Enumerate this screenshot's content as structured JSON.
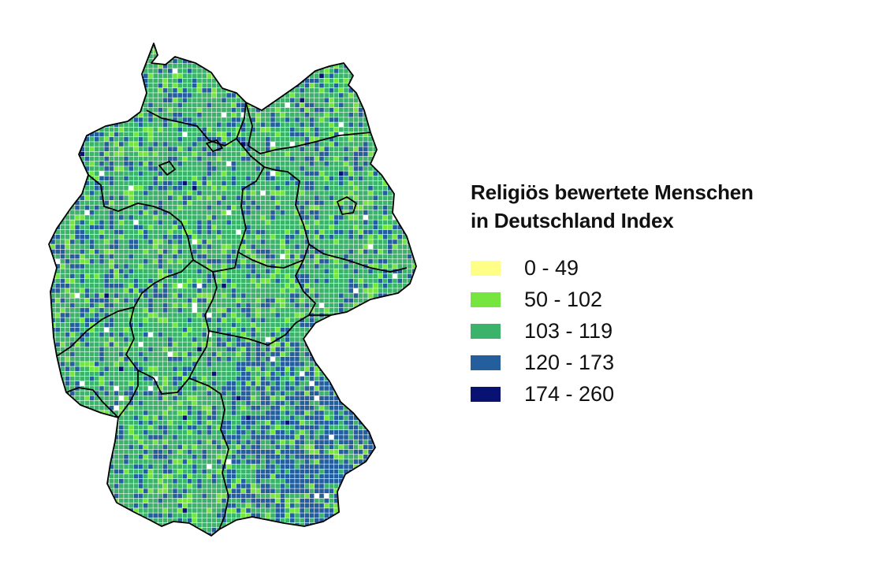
{
  "legend": {
    "title_line1": "Religiös bewertete Menschen",
    "title_line2": "in Deutschland Index",
    "classes": [
      {
        "label": "0 - 49",
        "min": 0,
        "max": 49,
        "color": "#ffff88"
      },
      {
        "label": "50 - 102",
        "min": 50,
        "max": 102,
        "color": "#77e540"
      },
      {
        "label": "103 - 119",
        "min": 103,
        "max": 119,
        "color": "#3cb36a"
      },
      {
        "label": "120 - 173",
        "min": 120,
        "max": 173,
        "color": "#245e9c"
      },
      {
        "label": "174 - 260",
        "min": 174,
        "max": 260,
        "color": "#081272"
      }
    ]
  },
  "map": {
    "region": "Germany",
    "grid": "square cells colored by index class",
    "borders": "federal state boundaries in black"
  }
}
